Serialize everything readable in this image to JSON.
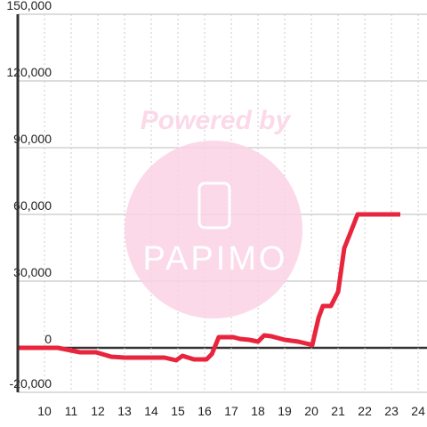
{
  "chart_data": {
    "type": "line",
    "watermark": {
      "text": "Powered by",
      "logo": "PAPIMO"
    },
    "x": [
      9,
      10.5,
      11,
      11.33,
      11.93,
      12.5,
      13,
      14.5,
      14.93,
      15.17,
      15.6,
      16.07,
      16.27,
      16.53,
      17.07,
      17.33,
      17.67,
      18,
      18.23,
      18.5,
      19,
      19.5,
      19.93,
      20.03,
      20.27,
      20.43,
      20.73,
      21,
      21.23,
      21.43,
      21.73,
      23.33
    ],
    "values": [
      0,
      0,
      -1200,
      -2000,
      -2000,
      -4000,
      -4400,
      -4400,
      -5600,
      -3600,
      -5200,
      -5200,
      -2800,
      4800,
      4800,
      4000,
      3600,
      2800,
      5600,
      5200,
      3600,
      2800,
      1600,
      1200,
      13600,
      18800,
      18800,
      25200,
      44800,
      50800,
      60000,
      60000
    ],
    "color": "#e8253d",
    "xlim": [
      9,
      24.33
    ],
    "xticks": [
      10,
      11,
      12,
      13,
      14,
      15,
      16,
      17,
      18,
      19,
      20,
      21,
      22,
      23,
      24
    ],
    "ylim": [
      -20000,
      150000
    ],
    "yticks": [
      {
        "value": -20000,
        "label": "-20,000"
      },
      0,
      {
        "value": 30000,
        "label": "30,000"
      },
      {
        "value": 60000,
        "label": "60,000"
      },
      {
        "value": 90000,
        "label": "90,000"
      },
      {
        "value": 120000,
        "label": "120,000"
      },
      {
        "value": 150000,
        "label": "150,000"
      }
    ],
    "grid": true
  }
}
